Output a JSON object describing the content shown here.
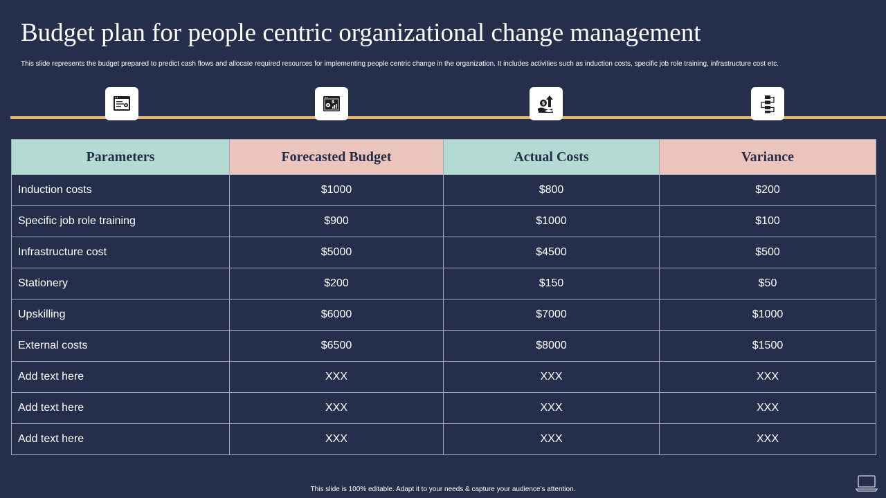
{
  "slide": {
    "title": "Budget plan for people centric organizational change management",
    "subtitle": "This slide represents the budget prepared to predict cash flows and allocate required resources for implementing people  centric change in the organization. It includes activities such as induction costs, specific job role training, infrastructure cost etc.",
    "footer": "This slide is 100% editable.  Adapt it to your needs & capture your audience’s attention."
  },
  "timeline": {
    "accent_color": "#e6b46a",
    "icons": [
      "browser-settings-icon",
      "dollar-chart-icon",
      "money-growth-icon",
      "flowchart-icon"
    ]
  },
  "table": {
    "headers": [
      "Parameters",
      "Forecasted Budget",
      "Actual Costs",
      "Variance"
    ],
    "rows": [
      [
        "Induction  costs",
        "$1000",
        "$800",
        "$200"
      ],
      [
        "Specific job role training",
        "$900",
        "$1000",
        "$100"
      ],
      [
        "Infrastructure  cost",
        "$5000",
        "$4500",
        "$500"
      ],
      [
        "Stationery",
        "$200",
        "$150",
        "$50"
      ],
      [
        "Upskilling",
        "$6000",
        "$7000",
        "$1000"
      ],
      [
        "External  costs",
        "$6500",
        "$8000",
        "$1500"
      ],
      [
        "Add text here",
        "XXX",
        "XXX",
        "XXX"
      ],
      [
        "Add text here",
        "XXX",
        "XXX",
        "XXX"
      ],
      [
        "Add text here",
        "XXX",
        "XXX",
        "XXX"
      ]
    ]
  },
  "colors": {
    "background": "#252e4a",
    "header_teal": "#b3dad3",
    "header_pink": "#ebc4bd",
    "text": "#ffffff"
  }
}
